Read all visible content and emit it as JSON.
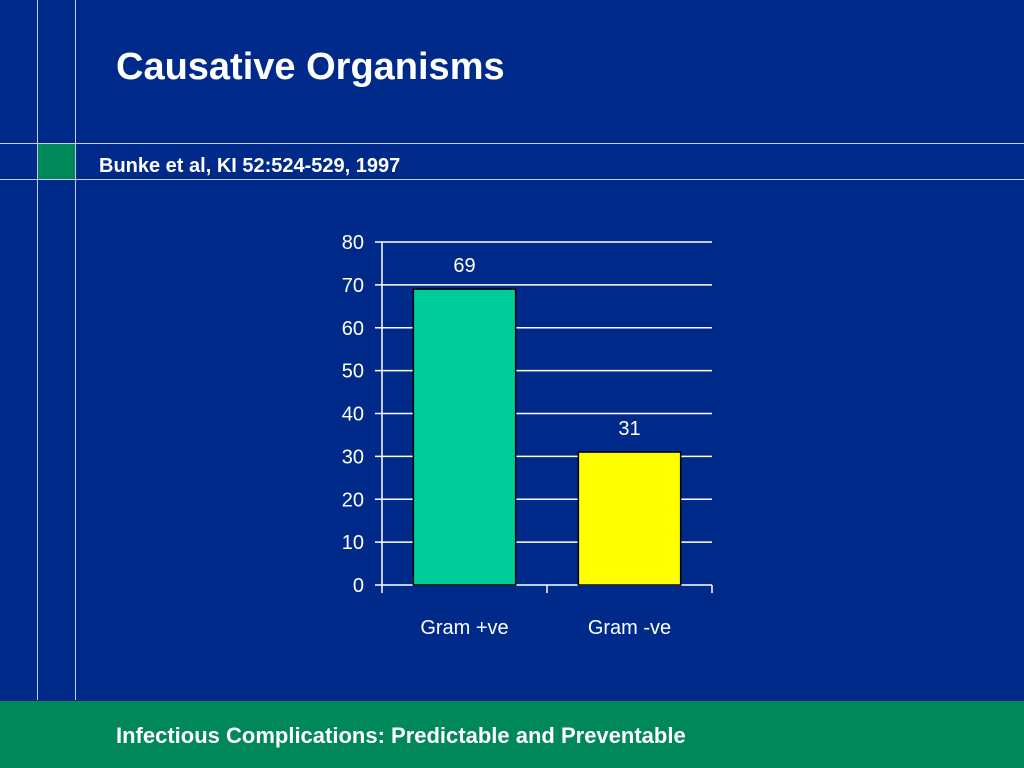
{
  "slide": {
    "title": "Causative Organisms",
    "subtitle": "Bunke et al, KI 52:524-529, 1997",
    "footer": "Infectious Complications: Predictable and Preventable"
  },
  "colors": {
    "background": "#002a8a",
    "accent_green": "#00875a",
    "line": "#c8cce0",
    "gram_positive": "#00cc99",
    "gram_negative": "#ffff00"
  },
  "chart_data": {
    "type": "bar",
    "categories": [
      "Gram +ve",
      "Gram -ve"
    ],
    "values": [
      69,
      31
    ],
    "data_labels": [
      "69",
      "31"
    ],
    "bar_colors": [
      "#00cc99",
      "#ffff00"
    ],
    "ylim": [
      0,
      80
    ],
    "yticks": [
      0,
      10,
      20,
      30,
      40,
      50,
      60,
      70,
      80
    ],
    "grid": true,
    "legend": "none",
    "xlabel": "",
    "ylabel": ""
  }
}
